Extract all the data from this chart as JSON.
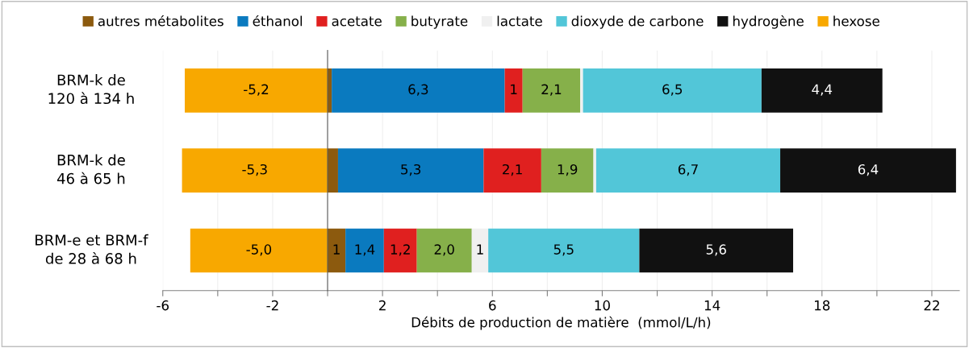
{
  "chart_data": {
    "type": "bar",
    "orientation": "horizontal",
    "stacked": true,
    "categories": [
      "BRM-k de 120 à 134 h",
      "BRM-k de 46 à 65 h",
      "BRM-e et BRM-f de 28 à 68 h"
    ],
    "series": [
      {
        "name": "autres métabolites",
        "color": "#8c5a0e",
        "values": [
          0.15,
          0.38,
          0.65
        ],
        "value_labels": [
          null,
          null,
          "1"
        ]
      },
      {
        "name": "éthanol",
        "color": "#0a7abf",
        "values": [
          6.3,
          5.3,
          1.4
        ],
        "value_labels": [
          "6,3",
          "5,3",
          "1,4"
        ]
      },
      {
        "name": "acetate",
        "color": "#e0201f",
        "values": [
          0.65,
          2.1,
          1.2
        ],
        "value_labels": [
          "1",
          "2,1",
          "1,2"
        ]
      },
      {
        "name": "butyrate",
        "color": "#86b04a",
        "values": [
          2.1,
          1.9,
          2.0
        ],
        "value_labels": [
          "2,1",
          "1,9",
          "2,0"
        ]
      },
      {
        "name": "lactate",
        "color": "#f0f0f0",
        "values": [
          0.1,
          0.1,
          0.6
        ],
        "value_labels": [
          null,
          null,
          "1"
        ]
      },
      {
        "name": "dioxyde de carbone",
        "color": "#52c6d8",
        "values": [
          6.5,
          6.7,
          5.5
        ],
        "value_labels": [
          "6,5",
          "6,7",
          "5,5"
        ]
      },
      {
        "name": "hydrogène",
        "color": "#111111",
        "values": [
          4.4,
          6.4,
          5.6
        ],
        "value_labels": [
          "4,4",
          "6,4",
          "5,6"
        ]
      },
      {
        "name": "hexose",
        "color": "#f8a800",
        "values": [
          -5.2,
          -5.3,
          -5.0
        ],
        "value_labels": [
          "-5,2",
          "-5,3",
          "-5,0"
        ]
      }
    ],
    "xlabel": "Débits de production de matière  (mmol/L/h)",
    "xlim": [
      -6,
      23
    ],
    "xticks": [
      -6,
      {
        "value": -4,
        "label": null
      },
      -2,
      {
        "value": 0,
        "label": null
      },
      2,
      {
        "value": 4,
        "label": null
      },
      6,
      {
        "value": 8,
        "label": null
      },
      10,
      {
        "value": 12,
        "label": null
      },
      14,
      {
        "value": 16,
        "label": null
      },
      18,
      {
        "value": 20,
        "label": null
      },
      22
    ],
    "grid": "x",
    "legend": "top"
  }
}
